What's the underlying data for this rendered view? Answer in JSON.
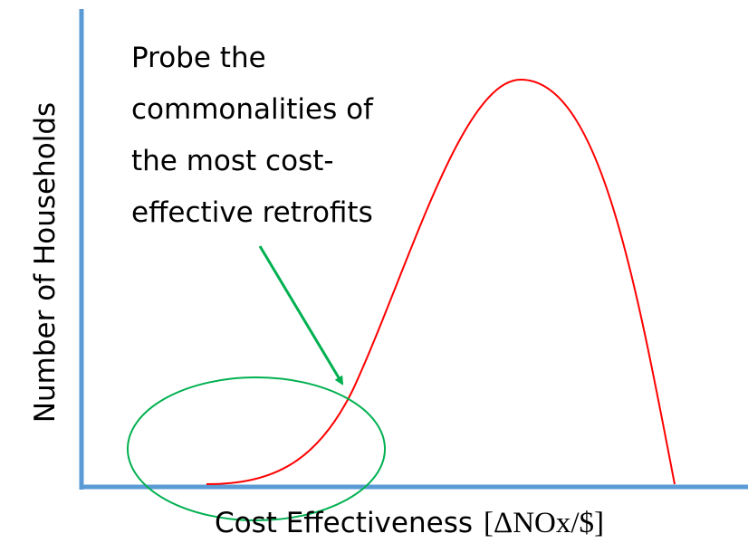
{
  "y_label": "Number of Households",
  "x_label": {
    "text": "Cost Effectiveness",
    "unit": "[ΔNOx/$]"
  },
  "annotation": {
    "lines": [
      "Probe the",
      "commonalities of",
      "the most cost-",
      "effective retrofits"
    ]
  }
}
